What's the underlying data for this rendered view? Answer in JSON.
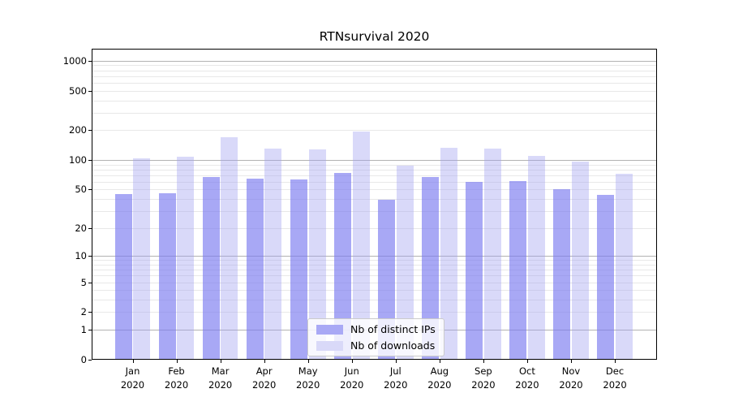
{
  "chart_data": {
    "type": "bar",
    "title": "RTNsurvival 2020",
    "categories": [
      "Jan 2020",
      "Feb 2020",
      "Mar 2020",
      "Apr 2020",
      "May 2020",
      "Jun 2020",
      "Jul 2020",
      "Aug 2020",
      "Sep 2020",
      "Oct 2020",
      "Nov 2020",
      "Dec 2020"
    ],
    "x_tick_line1": [
      "Jan",
      "Feb",
      "Mar",
      "Apr",
      "May",
      "Jun",
      "Jul",
      "Aug",
      "Sep",
      "Oct",
      "Nov",
      "Dec"
    ],
    "x_tick_line2": "2020",
    "series": [
      {
        "name": "Nb of distinct IPs",
        "values": [
          45,
          46,
          67,
          65,
          63,
          74,
          39,
          67,
          60,
          61,
          50,
          44
        ],
        "fill": "rgba(123,123,240,0.66)",
        "legend_fill": "#a9a9f5"
      },
      {
        "name": "Nb of downloads",
        "values": [
          105,
          109,
          169,
          130,
          127,
          193,
          88,
          134,
          130,
          110,
          96,
          72
        ],
        "fill": "rgba(160,160,240,0.40)",
        "legend_fill": "#d9d9f8"
      }
    ],
    "y_scale": "log1p",
    "ylim": [
      0,
      1322
    ],
    "y_ticks": [
      0,
      1,
      2,
      5,
      10,
      20,
      50,
      100,
      200,
      500,
      1000
    ],
    "y_tick_labels": [
      "0",
      "1",
      "2",
      "5",
      "10",
      "20",
      "50",
      "100",
      "200",
      "500",
      "1000"
    ],
    "y_major_ticks": [
      1,
      10,
      100,
      1000
    ],
    "y_minor_gridlines": [
      3,
      4,
      6,
      7,
      8,
      9,
      30,
      40,
      60,
      70,
      80,
      90,
      300,
      400,
      600,
      700,
      800,
      900
    ],
    "grid": true,
    "legend": {
      "position": "lower-center",
      "entries": [
        "Nb of distinct IPs",
        "Nb of downloads"
      ]
    },
    "colors": {
      "major_grid": "#b2b2b2",
      "minor_grid": "#e8e8e8",
      "axis": "#000000",
      "text": "#000000"
    }
  }
}
